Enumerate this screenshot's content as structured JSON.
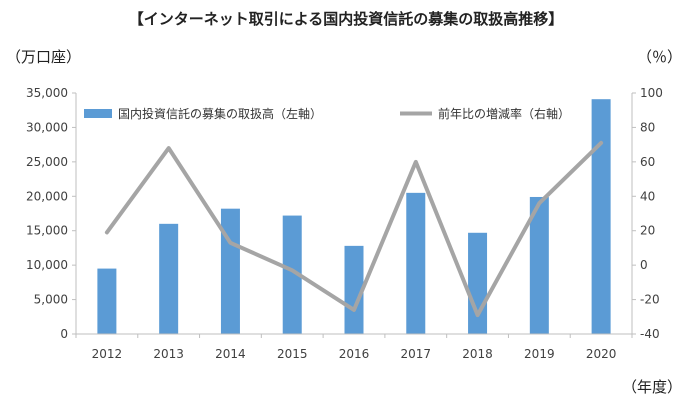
{
  "chart_data": {
    "type": "bar+line",
    "title": "【インターネット取引による国内投資信託の募集の取扱高推移】",
    "left_unit": "（万口座）",
    "right_unit": "（％）",
    "x_unit": "（年度）",
    "categories": [
      "2012",
      "2013",
      "2014",
      "2015",
      "2016",
      "2017",
      "2018",
      "2019",
      "2020"
    ],
    "y_left": {
      "min": 0,
      "max": 35000,
      "ticks": [
        0,
        5000,
        10000,
        15000,
        20000,
        25000,
        30000,
        35000
      ],
      "tick_labels": [
        "0",
        "5,000",
        "10,000",
        "15,000",
        "20,000",
        "25,000",
        "30,000",
        "35,000"
      ]
    },
    "y_right": {
      "min": -40,
      "max": 100,
      "ticks": [
        -40,
        -20,
        0,
        20,
        40,
        60,
        80,
        100
      ],
      "tick_labels": [
        "-40",
        "-20",
        "0",
        "20",
        "40",
        "60",
        "80",
        "100"
      ]
    },
    "grid": false,
    "legend_position": "top",
    "series": [
      {
        "name": "国内投資信託の募集の取扱高（左軸）",
        "type": "bar",
        "axis": "left",
        "color": "#5B9BD5",
        "values": [
          9500,
          16000,
          18200,
          17200,
          12800,
          20500,
          14700,
          19900,
          34100
        ]
      },
      {
        "name": "前年比の増減率（右軸）",
        "type": "line",
        "axis": "right",
        "color": "#A5A5A5",
        "values": [
          19,
          68,
          13,
          -3,
          -26,
          60,
          -29,
          36,
          71
        ]
      }
    ]
  }
}
